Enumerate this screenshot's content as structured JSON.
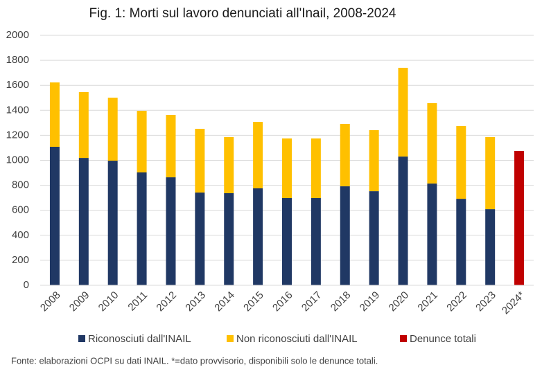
{
  "chart_data": {
    "type": "stacked_bar",
    "title": "Fig. 1: Morti sul lavoro denunciati all'Inail, 2008-2024",
    "categories": [
      "2008",
      "2009",
      "2010",
      "2011",
      "2012",
      "2013",
      "2014",
      "2015",
      "2016",
      "2017",
      "2018",
      "2019",
      "2020",
      "2021",
      "2022",
      "2023",
      "2024*"
    ],
    "series": [
      {
        "name": "Riconosciuti dall'INAIL",
        "color": "#203864",
        "values": [
          1108,
          1019,
          997,
          903,
          864,
          742,
          737,
          776,
          698,
          698,
          792,
          753,
          1030,
          814,
          692,
          609,
          null
        ]
      },
      {
        "name": "Non riconosciuti dall'INAIL",
        "color": "#ffc000",
        "values": [
          515,
          527,
          504,
          493,
          499,
          510,
          449,
          531,
          477,
          477,
          499,
          488,
          710,
          643,
          582,
          577,
          null
        ]
      },
      {
        "name": "Denunce totali",
        "color": "#c00000",
        "values": [
          null,
          null,
          null,
          null,
          null,
          null,
          null,
          null,
          null,
          null,
          null,
          null,
          null,
          null,
          null,
          null,
          1075
        ]
      }
    ],
    "ylim": [
      0,
      2000
    ],
    "yticks": [
      0,
      200,
      400,
      600,
      800,
      1000,
      1200,
      1400,
      1600,
      1800,
      2000
    ],
    "grid": true,
    "legend": "bottom",
    "note": "Fonte: elaborazioni OCPI su dati INAIL. *=dato provvisorio, disponibili solo le denunce totali."
  }
}
